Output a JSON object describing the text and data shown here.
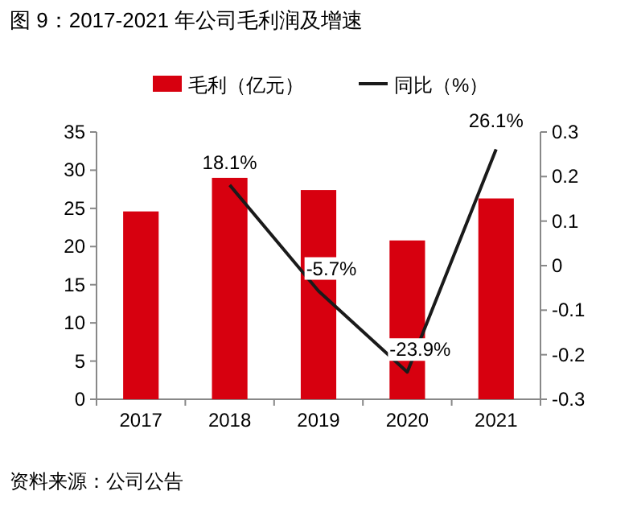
{
  "chart_data": {
    "type": "bar",
    "title": "图 9：2017-2021 年公司毛利润及增速",
    "categories": [
      "2017",
      "2018",
      "2019",
      "2020",
      "2021"
    ],
    "series": [
      {
        "name": "毛利（亿元）",
        "color": "#d7000f",
        "values": [
          24.6,
          29.0,
          27.4,
          20.8,
          26.3
        ]
      },
      {
        "name": "同比（%）",
        "type": "line",
        "axis": "y2",
        "color": "#1a1a1a",
        "values": [
          null,
          0.181,
          -0.057,
          -0.239,
          0.261
        ],
        "value_labels": [
          null,
          "18.1%",
          "-5.7%",
          "-23.9%",
          "26.1%"
        ]
      }
    ],
    "ylim": [
      0,
      35
    ],
    "yticks": [
      0,
      5,
      10,
      15,
      20,
      25,
      30,
      35
    ],
    "y2lim": [
      -0.3,
      0.3
    ],
    "y2ticks": [
      -0.3,
      -0.2,
      -0.1,
      0,
      0.1,
      0.2,
      0.3
    ],
    "legend": "top",
    "grid": false,
    "annotations": [
      "资料来源：公司公告"
    ]
  }
}
